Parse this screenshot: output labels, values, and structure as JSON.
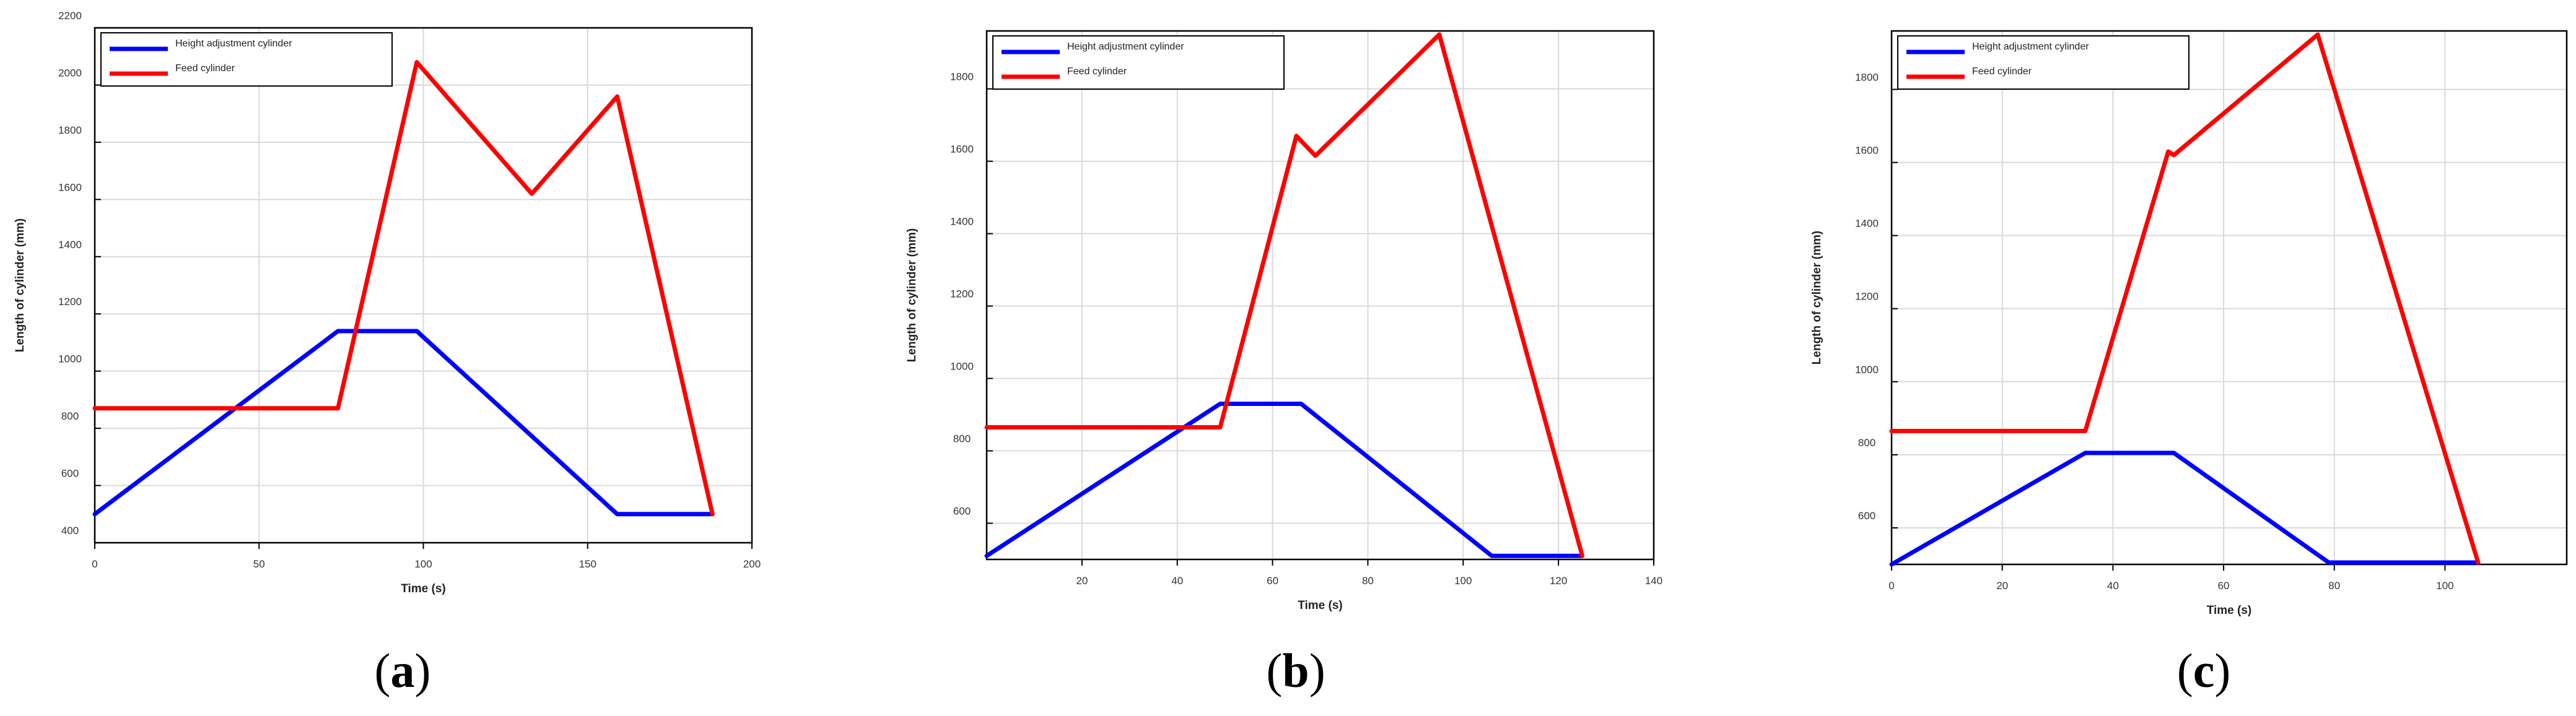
{
  "colors": {
    "height_series": "#0000ff",
    "feed_series": "#ff0000",
    "grid": "#d9d9d9",
    "axes": "#000000",
    "background": "#ffffff"
  },
  "chart_data": [
    {
      "type": "line",
      "panel_label": "a",
      "xlabel": "Time (s)",
      "ylabel": "Length of cylinder (mm)",
      "xlim": [
        0,
        200
      ],
      "ylim": [
        400,
        2200
      ],
      "xticks": [
        0,
        50,
        100,
        150,
        200
      ],
      "yticks": [
        400,
        600,
        800,
        1000,
        1200,
        1400,
        1600,
        1800,
        2000,
        2200
      ],
      "grid": true,
      "legend_position": "top-left",
      "series": [
        {
          "name": "Height adjustment cylinder",
          "color": "#0000ff",
          "x": [
            0,
            74,
            98,
            159,
            188
          ],
          "y": [
            500,
            1140,
            1140,
            500,
            500
          ]
        },
        {
          "name": "Feed cylinder",
          "color": "#ff0000",
          "x": [
            0,
            74,
            98,
            133,
            159,
            188
          ],
          "y": [
            870,
            870,
            2080,
            1620,
            1960,
            500
          ]
        }
      ]
    },
    {
      "type": "line",
      "panel_label": "b",
      "xlabel": "Time (s)",
      "ylabel": "Length of cylinder (mm)",
      "xlim": [
        0,
        140
      ],
      "ylim": [
        500,
        1960
      ],
      "xticks": [
        20,
        40,
        60,
        80,
        100,
        120,
        140
      ],
      "yticks": [
        600,
        800,
        1000,
        1200,
        1400,
        1600,
        1800
      ],
      "grid": true,
      "legend_position": "top-left",
      "series": [
        {
          "name": "Height adjustment cylinder",
          "color": "#0000ff",
          "x": [
            0,
            49,
            66,
            106,
            125
          ],
          "y": [
            510,
            930,
            930,
            510,
            510
          ]
        },
        {
          "name": "Feed cylinder",
          "color": "#ff0000",
          "x": [
            0,
            49,
            65,
            69,
            95,
            125
          ],
          "y": [
            865,
            865,
            1670,
            1615,
            1950,
            510
          ]
        }
      ]
    },
    {
      "type": "line",
      "panel_label": "c",
      "xlabel": "Time (s)",
      "ylabel": "Length of cylinder (mm)",
      "xlim": [
        0,
        122
      ],
      "ylim": [
        500,
        1960
      ],
      "xticks": [
        0,
        20,
        40,
        60,
        80,
        100
      ],
      "yticks": [
        600,
        800,
        1000,
        1200,
        1400,
        1600,
        1800
      ],
      "grid": true,
      "legend_position": "top-left",
      "series": [
        {
          "name": "Height adjustment cylinder",
          "color": "#0000ff",
          "x": [
            0,
            35,
            51,
            79,
            106
          ],
          "y": [
            500,
            805,
            805,
            505,
            505
          ]
        },
        {
          "name": "Feed cylinder",
          "color": "#ff0000",
          "x": [
            0,
            35,
            50,
            51,
            77,
            106
          ],
          "y": [
            865,
            865,
            1630,
            1620,
            1950,
            505
          ]
        }
      ]
    }
  ]
}
